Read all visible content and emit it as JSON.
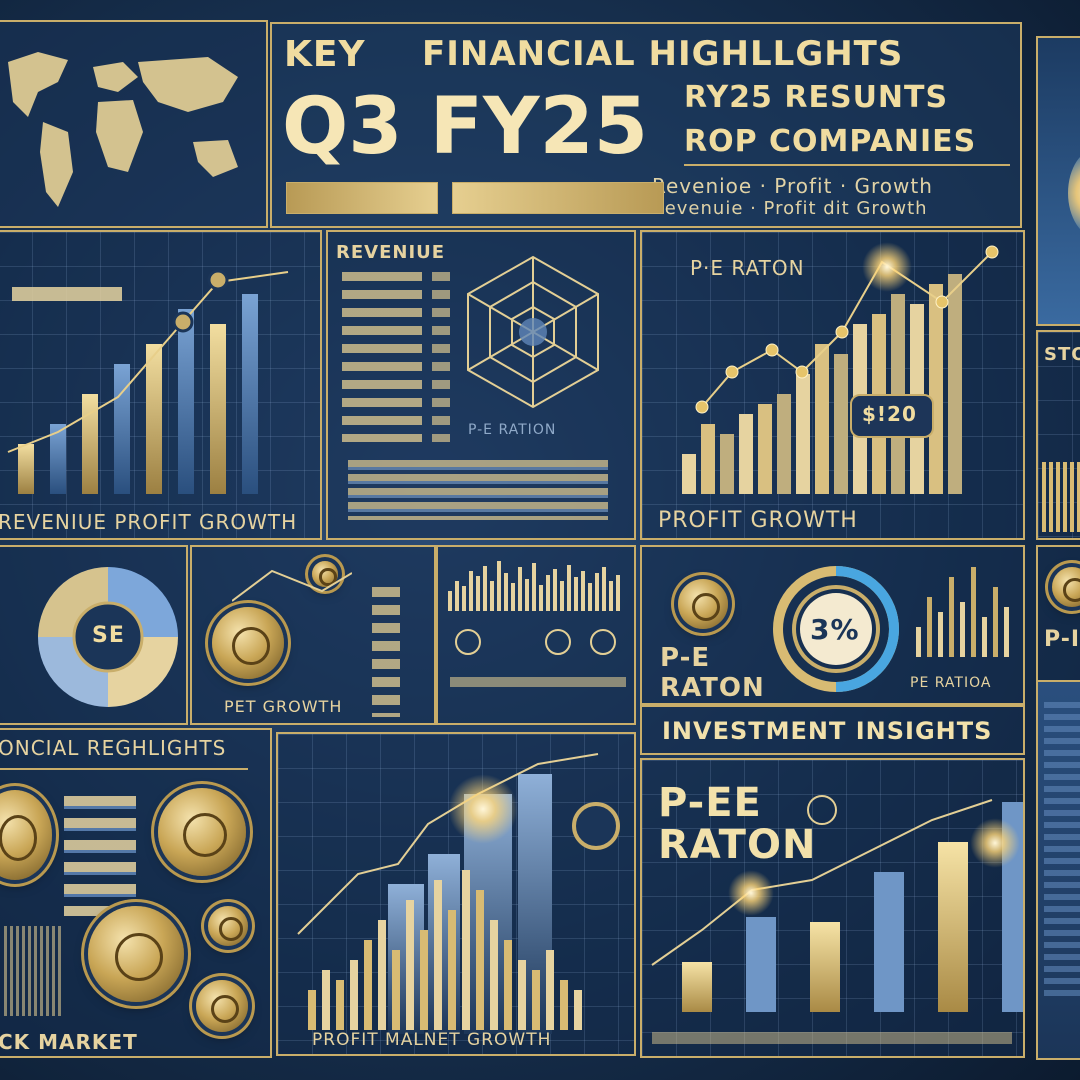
{
  "header": {
    "key": "KEY",
    "title": "FINANCIAL HIGHLLGHTS",
    "quarter": "Q3 FY25",
    "results": "RY25 RESUNTS",
    "companies": "ROP COMPANIES",
    "metrics_line1": "Revenioe · Profit · Growth",
    "metrics_line2": "Revenuie · Profit dit Growth"
  },
  "labels": {
    "revenue_profit_growth": "REVENIUE   PROFIT GROWTH",
    "revenue": "REVENIUE",
    "pe_ration_small": "P-E  RATION",
    "pe_raton": "P·E RATON",
    "price_badge": "$!20",
    "profit_growth": "PROFIT GROWTH",
    "pet_growth": "PET GROWTH",
    "percent": "3%",
    "pe_raton_mid": "P-E RATON",
    "pe_ratioa": "PE RATIOA",
    "investment_insights": "INVESTMENT INSIGHTS",
    "financial_highlights": "ONCIAL REGHLIGHTS",
    "pe_big": "P-EE RATON",
    "stock_market": "CK MARKET",
    "profit_market_growth": "PROFIT MALNET GROWTH",
    "sto": "STO",
    "pe_right": "P-I",
    "coin_left": "SE"
  },
  "colors": {
    "gold": "#d8bb73",
    "navy": "#17304f",
    "steel_blue": "#5f86b8",
    "cyan": "#49a6e0"
  }
}
